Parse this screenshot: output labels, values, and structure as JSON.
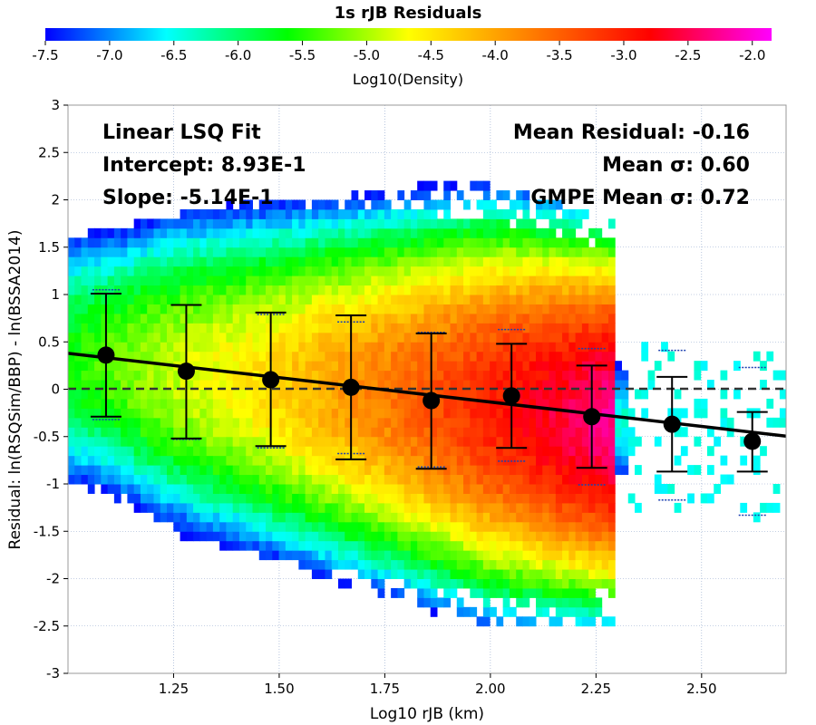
{
  "chart_data": {
    "type": "heatmap",
    "title": "1s rJB Residuals",
    "xlabel": "Log10 rJB (km)",
    "ylabel": "Residual: ln(RSQSim/BBP) - ln(BSSA2014)",
    "xlim": [
      1.0,
      2.7
    ],
    "ylim": [
      -3,
      3
    ],
    "x_ticks": [
      "1.25",
      "1.50",
      "1.75",
      "2.00",
      "2.25",
      "2.50"
    ],
    "y_ticks": [
      "-3",
      "-2.5",
      "-2",
      "-1.5",
      "-1",
      "-0.5",
      "0",
      "0.5",
      "1",
      "1.5",
      "2",
      "2.5",
      "3"
    ],
    "grid": true,
    "colorbar": {
      "label": "Log10(Density)",
      "range": [
        -7.5,
        -1.85
      ],
      "ticks": [
        "-7.5",
        "-7.0",
        "-6.5",
        "-6.0",
        "-5.5",
        "-5.0",
        "-4.5",
        "-4.0",
        "-3.5",
        "-3.0",
        "-2.5",
        "-2.0"
      ],
      "colors": [
        "#0000ff",
        "#00ffff",
        "#00ff00",
        "#ffff00",
        "#ff7f00",
        "#ff0000",
        "#ff00ff"
      ]
    },
    "annotations": {
      "fit_title": "Linear LSQ Fit",
      "intercept": "Intercept: 8.93E-1",
      "slope": "Slope: -5.14E-1",
      "mean_residual": "Mean Residual: -0.16",
      "mean_sigma": "Mean σ: 0.60",
      "gmpe_mean_sigma": "GMPE Mean σ: 0.72"
    },
    "fit_line": {
      "intercept": 0.893,
      "slope": -0.514
    },
    "binned_means": [
      {
        "x": 1.09,
        "mean": 0.36,
        "lower": -0.29,
        "upper": 1.01,
        "gmpe_lower": -0.32,
        "gmpe_upper": 1.05
      },
      {
        "x": 1.28,
        "mean": 0.19,
        "lower": -0.52,
        "upper": 0.89,
        "gmpe_lower": -0.53,
        "gmpe_upper": 0.89
      },
      {
        "x": 1.48,
        "mean": 0.1,
        "lower": -0.6,
        "upper": 0.81,
        "gmpe_lower": -0.62,
        "gmpe_upper": 0.79
      },
      {
        "x": 1.67,
        "mean": 0.02,
        "lower": -0.74,
        "upper": 0.78,
        "gmpe_lower": -0.68,
        "gmpe_upper": 0.71
      },
      {
        "x": 1.86,
        "mean": -0.12,
        "lower": -0.84,
        "upper": 0.59,
        "gmpe_lower": -0.82,
        "gmpe_upper": 0.6
      },
      {
        "x": 2.05,
        "mean": -0.07,
        "lower": -0.62,
        "upper": 0.48,
        "gmpe_lower": -0.76,
        "gmpe_upper": 0.63
      },
      {
        "x": 2.24,
        "mean": -0.29,
        "lower": -0.83,
        "upper": 0.25,
        "gmpe_lower": -1.01,
        "gmpe_upper": 0.43
      },
      {
        "x": 2.43,
        "mean": -0.37,
        "lower": -0.87,
        "upper": 0.13,
        "gmpe_lower": -1.17,
        "gmpe_upper": 0.41
      },
      {
        "x": 2.62,
        "mean": -0.55,
        "lower": -0.87,
        "upper": -0.24,
        "gmpe_lower": -1.33,
        "gmpe_upper": 0.23
      }
    ]
  }
}
